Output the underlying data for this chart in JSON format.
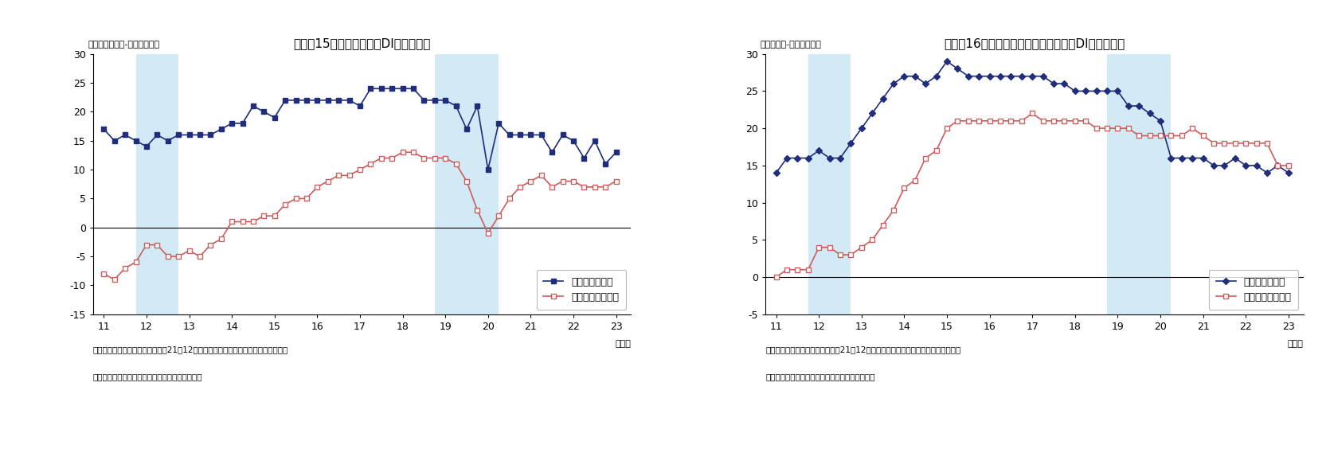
{
  "chart1": {
    "title": "（図表15）資金繰り判断DI（全産業）",
    "ylabel": "（「楽である」-「苦しい」）",
    "ylim": [
      -15,
      30
    ],
    "yticks": [
      -15,
      -10,
      -5,
      0,
      5,
      10,
      15,
      20,
      25,
      30
    ],
    "shadow1": [
      11.75,
      12.75
    ],
    "shadow2": [
      18.75,
      20.25
    ],
    "large_x": [
      11.0,
      11.25,
      11.5,
      11.75,
      12.0,
      12.25,
      12.5,
      12.75,
      13.0,
      13.25,
      13.5,
      13.75,
      14.0,
      14.25,
      14.5,
      14.75,
      15.0,
      15.25,
      15.5,
      15.75,
      16.0,
      16.25,
      16.5,
      16.75,
      17.0,
      17.25,
      17.5,
      17.75,
      18.0,
      18.25,
      18.5,
      18.75,
      19.0,
      19.25,
      19.5,
      19.75,
      20.0,
      20.25,
      20.5,
      20.75,
      21.0,
      21.25,
      21.5,
      21.75,
      22.0,
      22.25,
      22.5,
      22.75,
      23.0
    ],
    "large_y": [
      17,
      15,
      16,
      15,
      14,
      16,
      15,
      16,
      16,
      16,
      16,
      17,
      18,
      18,
      21,
      20,
      19,
      22,
      22,
      22,
      22,
      22,
      22,
      22,
      21,
      24,
      24,
      24,
      24,
      24,
      22,
      22,
      22,
      21,
      17,
      21,
      10,
      18,
      16,
      16,
      16,
      16,
      13,
      16,
      15,
      12,
      15,
      11,
      13
    ],
    "small_x": [
      11.0,
      11.25,
      11.5,
      11.75,
      12.0,
      12.25,
      12.5,
      12.75,
      13.0,
      13.25,
      13.5,
      13.75,
      14.0,
      14.25,
      14.5,
      14.75,
      15.0,
      15.25,
      15.5,
      15.75,
      16.0,
      16.25,
      16.5,
      16.75,
      17.0,
      17.25,
      17.5,
      17.75,
      18.0,
      18.25,
      18.5,
      18.75,
      19.0,
      19.25,
      19.5,
      19.75,
      20.0,
      20.25,
      20.5,
      20.75,
      21.0,
      21.25,
      21.5,
      21.75,
      22.0,
      22.25,
      22.5,
      22.75,
      23.0
    ],
    "small_y": [
      -8,
      -9,
      -7,
      -6,
      -3,
      -3,
      -5,
      -5,
      -4,
      -5,
      -3,
      -2,
      1,
      1,
      1,
      2,
      2,
      4,
      5,
      5,
      7,
      8,
      9,
      9,
      10,
      11,
      12,
      12,
      13,
      13,
      12,
      12,
      12,
      11,
      8,
      3,
      -1,
      2,
      5,
      7,
      8,
      9,
      7,
      8,
      8,
      7,
      7,
      7,
      8
    ],
    "note1": "（注）シャドーは景気後退期間、21年12月調査以降は調査対象見直し後の新ベース",
    "note2": "（資料）日本銀行「全国企業短期経済観測調査」",
    "legend_large": "大企業・全産業",
    "legend_small": "中小企業・全産業"
  },
  "chart2": {
    "title": "（図表16）　金融機関の貸出態度判断DI（全産業）",
    "ylabel": "（「緩い」-「厳しい」）",
    "ylim": [
      -5,
      30
    ],
    "yticks": [
      -5,
      0,
      5,
      10,
      15,
      20,
      25,
      30
    ],
    "shadow1": [
      11.75,
      12.75
    ],
    "shadow2": [
      18.75,
      20.25
    ],
    "large_x": [
      11.0,
      11.25,
      11.5,
      11.75,
      12.0,
      12.25,
      12.5,
      12.75,
      13.0,
      13.25,
      13.5,
      13.75,
      14.0,
      14.25,
      14.5,
      14.75,
      15.0,
      15.25,
      15.5,
      15.75,
      16.0,
      16.25,
      16.5,
      16.75,
      17.0,
      17.25,
      17.5,
      17.75,
      18.0,
      18.25,
      18.5,
      18.75,
      19.0,
      19.25,
      19.5,
      19.75,
      20.0,
      20.25,
      20.5,
      20.75,
      21.0,
      21.25,
      21.5,
      21.75,
      22.0,
      22.25,
      22.5,
      22.75,
      23.0
    ],
    "large_y": [
      14,
      16,
      16,
      16,
      17,
      16,
      16,
      18,
      20,
      22,
      24,
      26,
      27,
      27,
      26,
      27,
      29,
      28,
      27,
      27,
      27,
      27,
      27,
      27,
      27,
      27,
      26,
      26,
      25,
      25,
      25,
      25,
      25,
      23,
      23,
      22,
      21,
      16,
      16,
      16,
      16,
      15,
      15,
      16,
      15,
      15,
      14,
      15,
      14
    ],
    "small_x": [
      11.0,
      11.25,
      11.5,
      11.75,
      12.0,
      12.25,
      12.5,
      12.75,
      13.0,
      13.25,
      13.5,
      13.75,
      14.0,
      14.25,
      14.5,
      14.75,
      15.0,
      15.25,
      15.5,
      15.75,
      16.0,
      16.25,
      16.5,
      16.75,
      17.0,
      17.25,
      17.5,
      17.75,
      18.0,
      18.25,
      18.5,
      18.75,
      19.0,
      19.25,
      19.5,
      19.75,
      20.0,
      20.25,
      20.5,
      20.75,
      21.0,
      21.25,
      21.5,
      21.75,
      22.0,
      22.25,
      22.5,
      22.75,
      23.0
    ],
    "small_y": [
      0,
      1,
      1,
      1,
      4,
      4,
      3,
      3,
      4,
      5,
      7,
      9,
      12,
      13,
      16,
      17,
      20,
      21,
      21,
      21,
      21,
      21,
      21,
      21,
      22,
      21,
      21,
      21,
      21,
      21,
      20,
      20,
      20,
      20,
      19,
      19,
      19,
      19,
      19,
      20,
      19,
      18,
      18,
      18,
      18,
      18,
      18,
      15,
      15
    ],
    "note1": "（注）シャドーは景気後退期間、21年12月調査以降は調査対象見直し後の新ベース",
    "note2": "（資料）日本銀行「全国企業短期経済観測調査」",
    "legend_large": "大企業・全産業",
    "legend_small": "中小企業・全産業"
  },
  "shadow_color": "#ADD8F0",
  "shadow_alpha": 0.55,
  "large_color": "#1F2D7B",
  "small_color": "#CD5C5C",
  "bg_color": "#FFFFFF",
  "xticks": [
    11,
    12,
    13,
    14,
    15,
    16,
    17,
    18,
    19,
    20,
    21,
    22,
    23
  ],
  "xtick_labels": [
    "11",
    "12",
    "13",
    "14",
    "15",
    "16",
    "17",
    "18",
    "19",
    "20",
    "21",
    "22",
    "23"
  ],
  "xlabel_year": "（年）"
}
